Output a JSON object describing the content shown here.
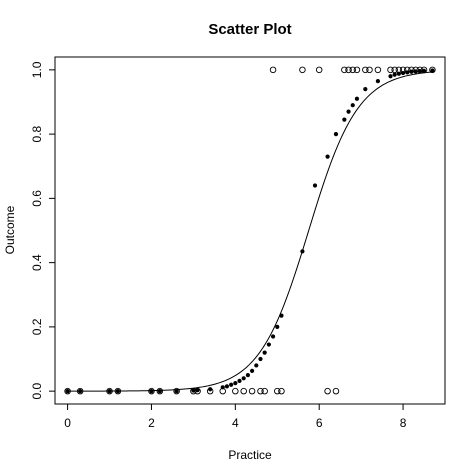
{
  "chart_data": {
    "type": "scatter",
    "title": "Scatter Plot",
    "xlabel": "Practice",
    "ylabel": "Outcome",
    "xlim": [
      -0.3,
      9.0
    ],
    "ylim": [
      -0.04,
      1.04
    ],
    "x_ticks": [
      0,
      2,
      4,
      6,
      8
    ],
    "y_ticks": [
      "0.0",
      "0.2",
      "0.4",
      "0.6",
      "0.8",
      "1.0"
    ],
    "grid": false,
    "series": [
      {
        "marker": "open-circle",
        "x": [
          0,
          0.3,
          1,
          1.2,
          2,
          2.2,
          2.6,
          3,
          3.1,
          3.4,
          3.7,
          4,
          4.2,
          4.4,
          4.6,
          4.7,
          5,
          5.1,
          6.2,
          6.4,
          4.9,
          5.6,
          6,
          6.6,
          6.7,
          6.8,
          6.9,
          7.1,
          7.2,
          7.4,
          7.7,
          7.8,
          7.9,
          8,
          8.1,
          8.2,
          8.3,
          8.4,
          8.5,
          8.7
        ],
        "y": [
          0,
          0,
          0,
          0,
          0,
          0,
          0,
          0,
          0,
          0,
          0,
          0,
          0,
          0,
          0,
          0,
          0,
          0,
          0,
          0,
          1,
          1,
          1,
          1,
          1,
          1,
          1,
          1,
          1,
          1,
          1,
          1,
          1,
          1,
          1,
          1,
          1,
          1,
          1,
          1
        ]
      },
      {
        "marker": "filled-dot",
        "x": [
          0,
          0.3,
          1,
          1.2,
          2,
          2.2,
          2.6,
          3,
          3.1,
          3.4,
          3.7,
          3.8,
          3.9,
          4,
          4.1,
          4.2,
          4.3,
          4.4,
          4.5,
          4.6,
          4.7,
          4.8,
          4.9,
          5,
          5.1,
          5.6,
          5.9,
          6.2,
          6.4,
          6.6,
          6.7,
          6.8,
          6.9,
          7.1,
          7.4,
          7.7,
          7.8,
          7.9,
          8,
          8.1,
          8.2,
          8.3,
          8.4,
          8.5,
          8.7
        ],
        "y": [
          0.0,
          0.0,
          0.0,
          0.0,
          0.0,
          0.0,
          0.0,
          0.002,
          0.003,
          0.006,
          0.012,
          0.015,
          0.02,
          0.025,
          0.032,
          0.04,
          0.05,
          0.063,
          0.08,
          0.1,
          0.12,
          0.145,
          0.17,
          0.2,
          0.235,
          0.435,
          0.64,
          0.73,
          0.8,
          0.845,
          0.87,
          0.89,
          0.91,
          0.94,
          0.965,
          0.98,
          0.985,
          0.988,
          0.99,
          0.992,
          0.994,
          0.995,
          0.996,
          0.997,
          0.998
        ]
      }
    ],
    "fit_curve": {
      "type": "logistic",
      "x0": 5.75,
      "k": 1.7
    }
  }
}
